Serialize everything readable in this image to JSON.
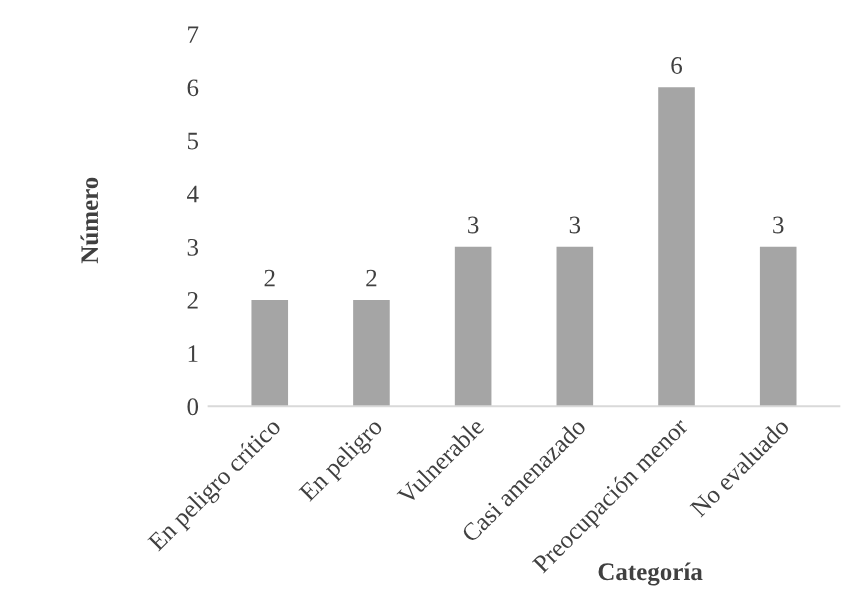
{
  "chart_data": {
    "type": "bar",
    "xlabel": "Categoría",
    "ylabel": "Número",
    "categories": [
      "En peligro crítico",
      "En peligro",
      "Vulnerable",
      "Casi amenazado",
      "Preocupación menor",
      "No evaluado"
    ],
    "values": [
      2,
      2,
      3,
      3,
      6,
      3
    ],
    "color": "#a5a5a5",
    "ylim": [
      0,
      7
    ],
    "yticks": [
      0,
      1,
      2,
      3,
      4,
      5,
      6,
      7
    ],
    "grid": false,
    "data_labels": true
  }
}
